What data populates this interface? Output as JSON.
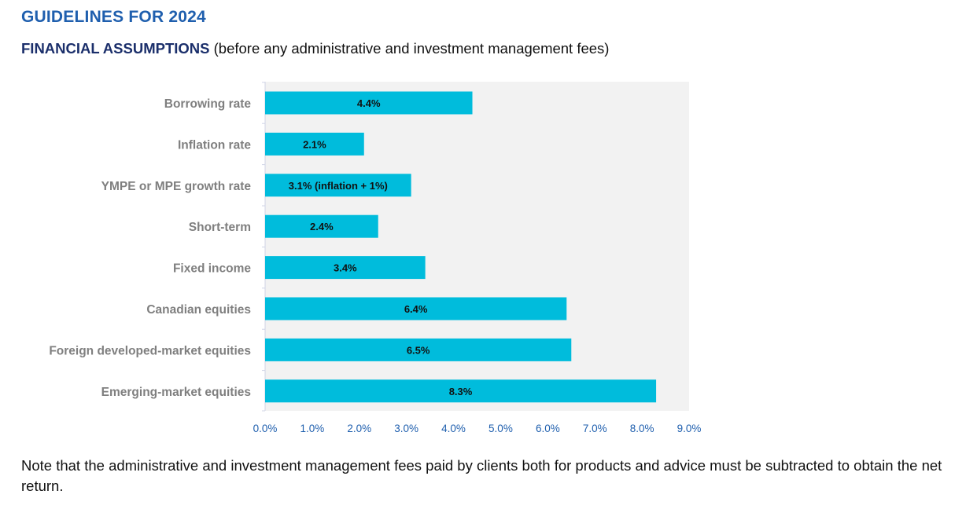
{
  "page": {
    "title": "GUIDELINES FOR 2024",
    "subtitle_bold": "FINANCIAL ASSUMPTIONS",
    "subtitle_rest": " (before any administrative and investment management fees)",
    "note": "Note that the administrative and investment management fees paid by clients both for products and advice must be subtracted to obtain the net return."
  },
  "colors": {
    "bar": "#00bcdc",
    "plot_bg": "#f2f2f2",
    "title": "#1f5fae",
    "category_label": "#7f7f7f",
    "tick_label": "#1f5fae"
  },
  "chart_data": {
    "type": "bar",
    "orientation": "horizontal",
    "categories": [
      "Borrowing rate",
      "Inflation rate",
      "YMPE or MPE growth rate",
      "Short-term",
      "Fixed income",
      "Canadian equities",
      "Foreign developed-market equities",
      "Emerging-market equities"
    ],
    "values": [
      4.4,
      2.1,
      3.1,
      2.4,
      3.4,
      6.4,
      6.5,
      8.3
    ],
    "data_labels": [
      "4.4%",
      "2.1%",
      "3.1% (inflation + 1%)",
      "2.4%",
      "3.4%",
      "6.4%",
      "6.5%",
      "8.3%"
    ],
    "x_ticks": [
      "0.0%",
      "1.0%",
      "2.0%",
      "3.0%",
      "4.0%",
      "5.0%",
      "6.0%",
      "7.0%",
      "8.0%",
      "9.0%"
    ],
    "xlim": [
      0,
      9
    ],
    "grid": false,
    "legend": "none"
  }
}
